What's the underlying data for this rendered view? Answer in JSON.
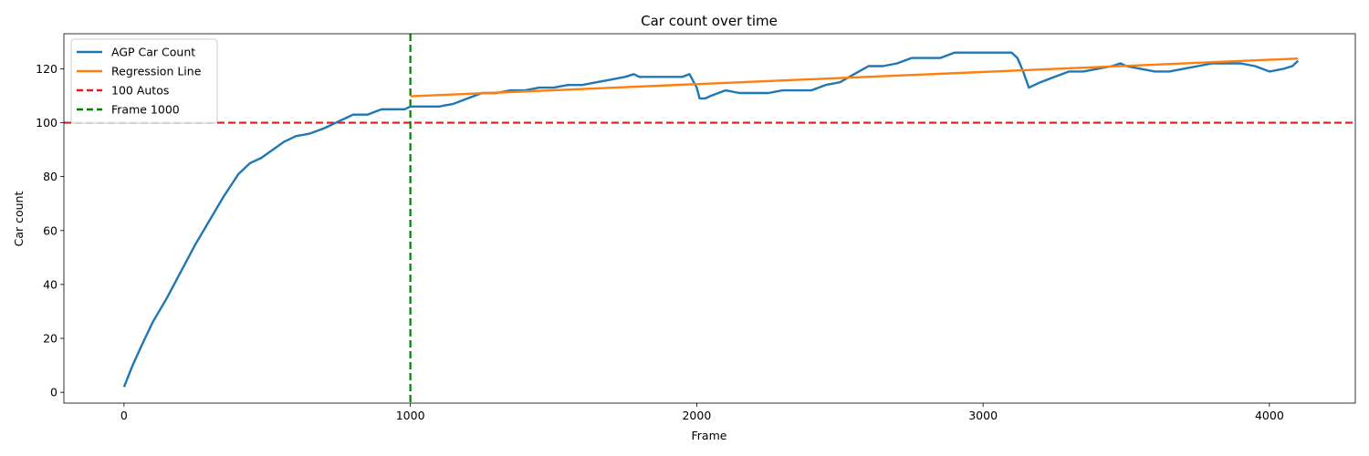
{
  "chart_data": {
    "type": "line",
    "title": "Car count over time",
    "xlabel": "Frame",
    "ylabel": "Car count",
    "xlim": [
      -210,
      4300
    ],
    "ylim": [
      -4,
      133
    ],
    "xticks": [
      0,
      1000,
      2000,
      3000,
      4000
    ],
    "yticks": [
      0,
      20,
      40,
      60,
      80,
      100,
      120
    ],
    "grid": false,
    "legend_position": "top-left",
    "series": [
      {
        "name": "AGP Car Count",
        "kind": "line",
        "color": "#1f77b4",
        "x": [
          0,
          30,
          60,
          100,
          150,
          200,
          250,
          300,
          350,
          400,
          440,
          480,
          520,
          560,
          580,
          600,
          650,
          700,
          760,
          800,
          850,
          900,
          940,
          980,
          1000,
          1050,
          1100,
          1150,
          1200,
          1250,
          1300,
          1350,
          1400,
          1450,
          1500,
          1550,
          1600,
          1650,
          1700,
          1750,
          1780,
          1800,
          1850,
          1900,
          1950,
          1975,
          1990,
          2000,
          2010,
          2030,
          2050,
          2100,
          2150,
          2200,
          2250,
          2300,
          2350,
          2400,
          2450,
          2500,
          2550,
          2600,
          2650,
          2700,
          2750,
          2800,
          2850,
          2900,
          2950,
          3000,
          3050,
          3100,
          3120,
          3140,
          3160,
          3200,
          3250,
          3300,
          3350,
          3400,
          3450,
          3480,
          3500,
          3550,
          3600,
          3650,
          3700,
          3750,
          3800,
          3850,
          3900,
          3950,
          4000,
          4050,
          4080,
          4100
        ],
        "y": [
          2,
          10,
          17,
          26,
          35,
          45,
          55,
          64,
          73,
          81,
          85,
          87,
          90,
          93,
          94,
          95,
          96,
          98,
          101,
          103,
          103,
          105,
          105,
          105,
          106,
          106,
          106,
          107,
          109,
          111,
          111,
          112,
          112,
          113,
          113,
          114,
          114,
          115,
          116,
          117,
          118,
          117,
          117,
          117,
          117,
          118,
          115,
          113,
          109,
          109,
          110,
          112,
          111,
          111,
          111,
          112,
          112,
          112,
          114,
          115,
          118,
          121,
          121,
          122,
          124,
          124,
          124,
          126,
          126,
          126,
          126,
          126,
          124,
          119,
          113,
          115,
          117,
          119,
          119,
          120,
          121,
          122,
          121,
          120,
          119,
          119,
          120,
          121,
          122,
          122,
          122,
          121,
          119,
          120,
          121,
          123
        ]
      },
      {
        "name": "Regression Line",
        "kind": "line",
        "color": "#ff7f0e",
        "x": [
          1000,
          4100
        ],
        "y": [
          109.8,
          123.8
        ]
      },
      {
        "name": "100 Autos",
        "kind": "hline",
        "color": "#e41a1c",
        "y": 100
      },
      {
        "name": "Frame 1000",
        "kind": "vline",
        "color": "#008000",
        "x": 1000
      }
    ]
  }
}
